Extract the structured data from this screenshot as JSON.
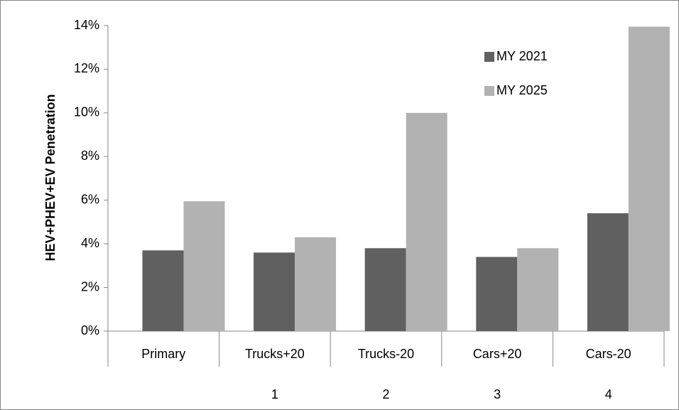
{
  "chart_data": {
    "type": "bar",
    "y_label": "HEV+PHEV+EV Penetration",
    "categories": [
      "Primary",
      "Trucks+20",
      "Trucks-20",
      "Cars+20",
      "Cars-20"
    ],
    "category_numbers": [
      null,
      "1",
      "2",
      "3",
      "4"
    ],
    "series": [
      {
        "name": "MY 2021",
        "color": "#606060",
        "values": [
          3.7,
          3.6,
          3.8,
          3.4,
          5.4
        ]
      },
      {
        "name": "MY 2025",
        "color": "#b2b2b2",
        "values": [
          5.95,
          4.3,
          10.0,
          3.8,
          13.95
        ]
      }
    ],
    "ylim": [
      0,
      14
    ],
    "yticks": [
      {
        "value": 0,
        "label": "0%"
      },
      {
        "value": 2,
        "label": "2%"
      },
      {
        "value": 4,
        "label": "4%"
      },
      {
        "value": 6,
        "label": "6%"
      },
      {
        "value": 8,
        "label": "8%"
      },
      {
        "value": 10,
        "label": "10%"
      },
      {
        "value": 12,
        "label": "12%"
      },
      {
        "value": 14,
        "label": "14%"
      }
    ],
    "legend": "top-right"
  }
}
